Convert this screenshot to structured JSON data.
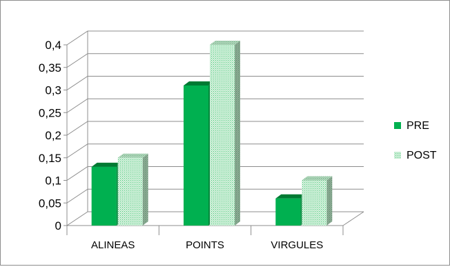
{
  "chart_data": {
    "type": "bar",
    "projection": "3d-clustered",
    "categories": [
      "ALINEAS",
      "POINTS",
      "VIRGULES"
    ],
    "series": [
      {
        "name": "PRE",
        "values": [
          0.13,
          0.31,
          0.06
        ],
        "color": "#00B050",
        "fill": "solid"
      },
      {
        "name": "POST",
        "values": [
          0.15,
          0.4,
          0.1
        ],
        "color": "#C6EFCE",
        "fill": "dotted"
      }
    ],
    "ylim": [
      0,
      0.4
    ],
    "yticks": [
      0,
      0.05,
      0.1,
      0.15,
      0.2,
      0.25,
      0.3,
      0.35,
      0.4
    ],
    "ytick_labels": [
      "0",
      "0,05",
      "0,1",
      "0,15",
      "0,2",
      "0,25",
      "0,3",
      "0,35",
      "0,4"
    ],
    "grid": true,
    "legend": "right",
    "title": "",
    "xlabel": "",
    "ylabel": ""
  }
}
